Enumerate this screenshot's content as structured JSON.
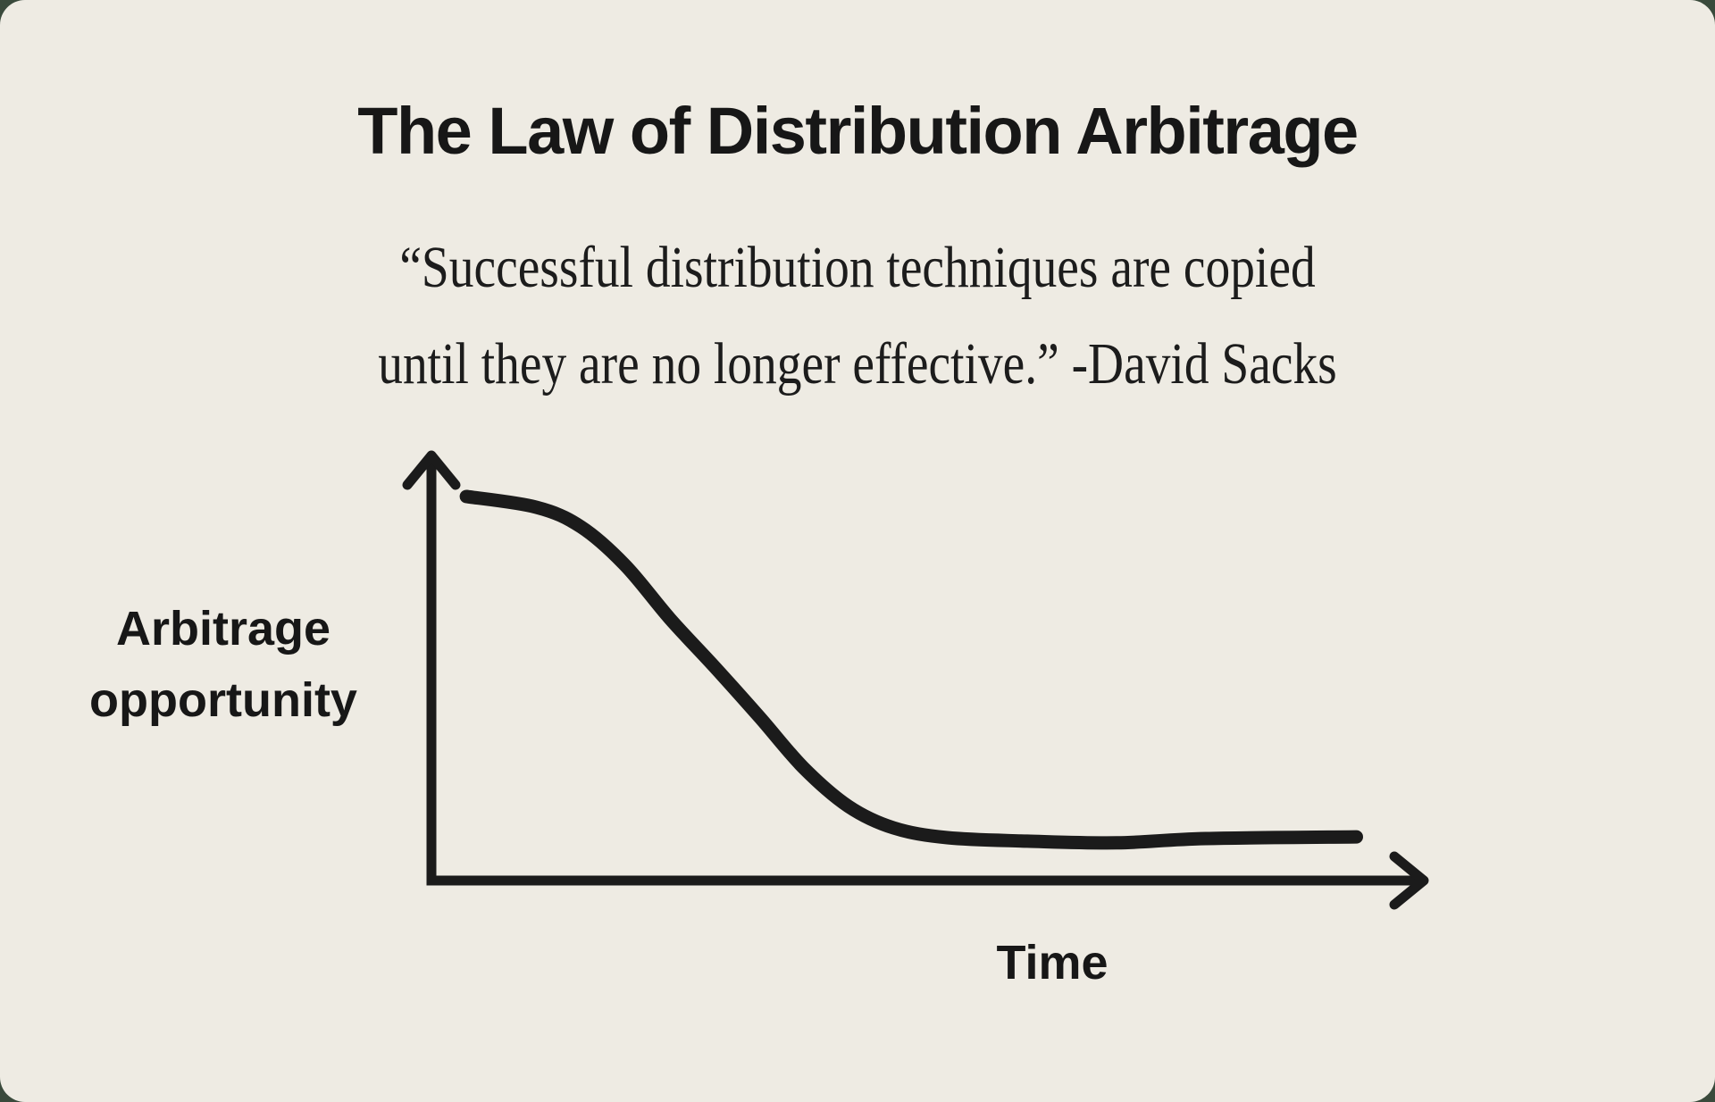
{
  "page": {
    "background_color": "#EEEBE3",
    "outer_background_color": "#3A4A3C",
    "ink_color": "#1B1B1B"
  },
  "title": "The Law of Distribution Arbitrage",
  "quote": {
    "line1": "“Successful distribution techniques are copied",
    "line2": "until they are no longer effective.” -David Sacks",
    "attribution": "David Sacks"
  },
  "chart_data": {
    "type": "line",
    "title": "The Law of Distribution Arbitrage",
    "xlabel": "Time",
    "ylabel": "Arbitrage opportunity",
    "x_axis": {
      "arrow": true,
      "tick_labels": [],
      "numeric_scale_shown": false
    },
    "y_axis": {
      "arrow": true,
      "tick_labels": [],
      "numeric_scale_shown": false
    },
    "grid": false,
    "legend": false,
    "annotation": "Conceptual hand-drawn curve: arbitrage opportunity starts high, declines steeply, then flattens near zero as time passes",
    "series": [
      {
        "name": "Arbitrage opportunity",
        "line_color": "#1B1B1B",
        "line_width": 15,
        "points_norm": [
          [
            0.035,
            0.898
          ],
          [
            0.105,
            0.873
          ],
          [
            0.15,
            0.827
          ],
          [
            0.194,
            0.738
          ],
          [
            0.239,
            0.613
          ],
          [
            0.284,
            0.5
          ],
          [
            0.329,
            0.383
          ],
          [
            0.373,
            0.265
          ],
          [
            0.418,
            0.175
          ],
          [
            0.463,
            0.125
          ],
          [
            0.517,
            0.102
          ],
          [
            0.597,
            0.094
          ],
          [
            0.687,
            0.09
          ],
          [
            0.776,
            0.1
          ],
          [
            0.927,
            0.104
          ]
        ]
      }
    ]
  }
}
